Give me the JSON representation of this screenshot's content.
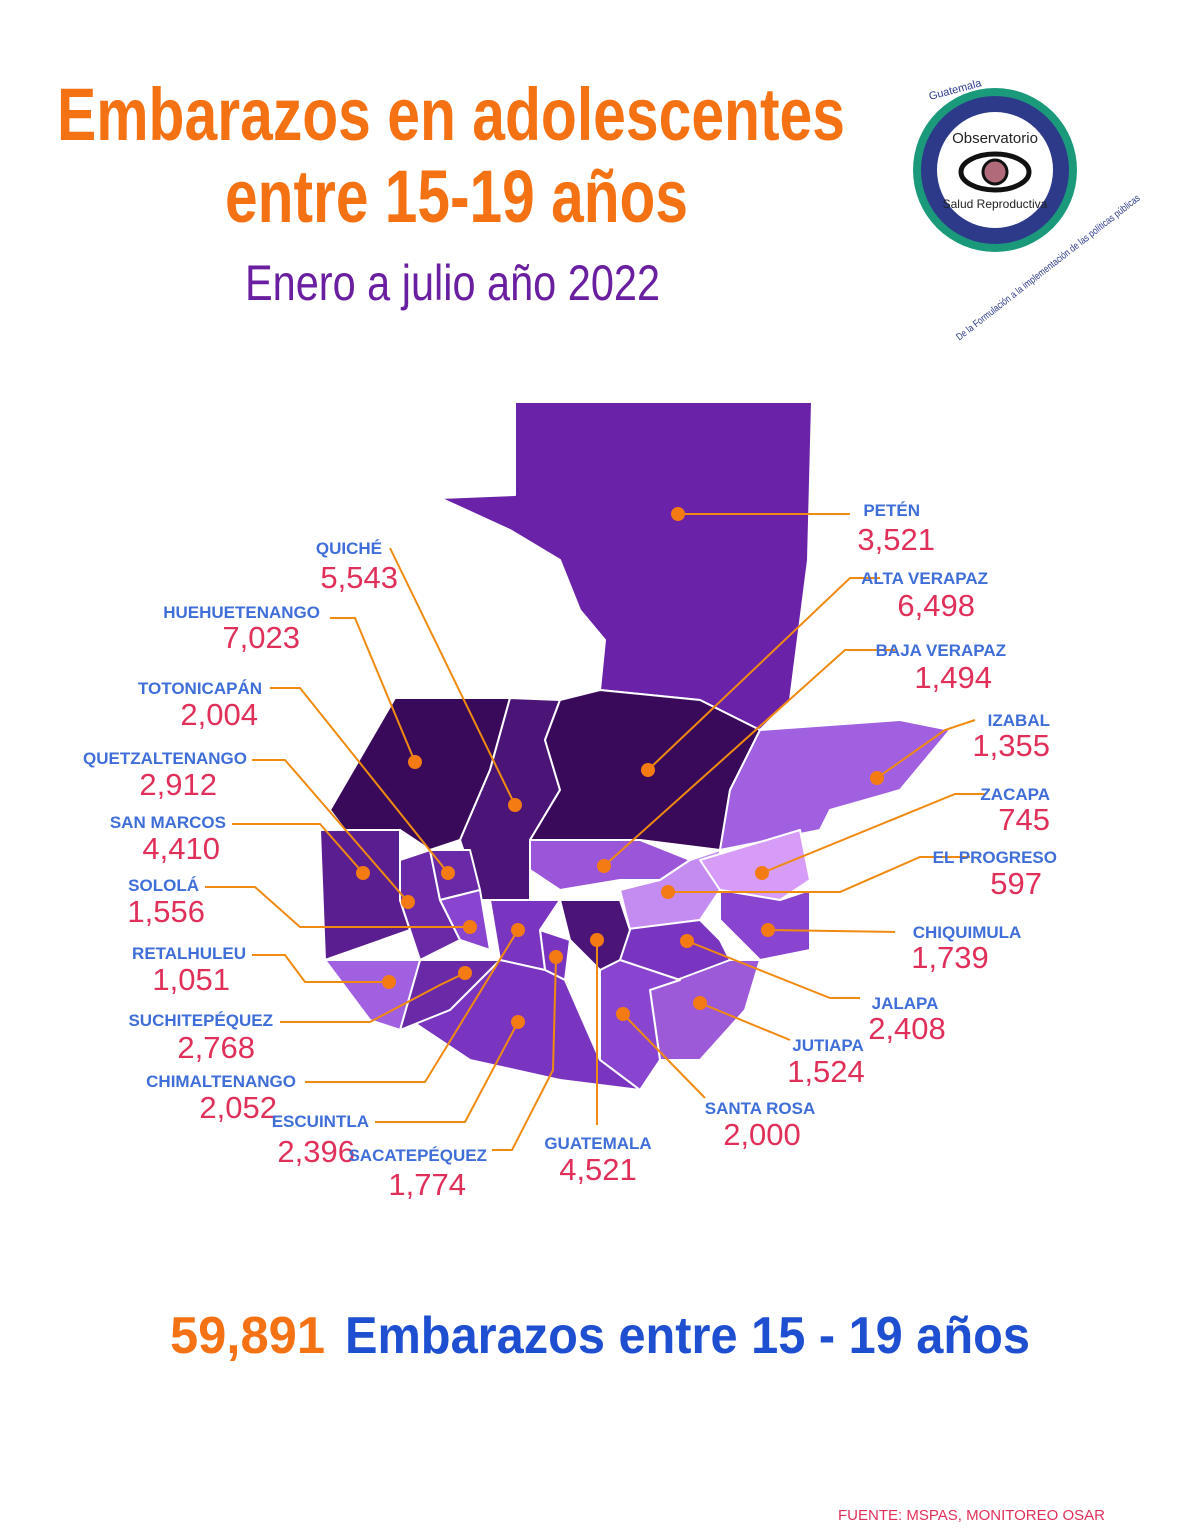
{
  "header": {
    "title_line1": "Embarazos en adolescentes",
    "title_line2": "entre 15-19 años",
    "subtitle": "Enero a julio año 2022"
  },
  "logo": {
    "country": "Guatemala",
    "name_line1": "Observatorio",
    "name_line2": "Salud Reproductiva",
    "motto": "De la Formulación a la implementación de las políticas públicas"
  },
  "departments": [
    {
      "name": "PETÉN",
      "value": "3,521"
    },
    {
      "name": "QUICHÉ",
      "value": "5,543"
    },
    {
      "name": "HUEHUETENANGO",
      "value": "7,023"
    },
    {
      "name": "TOTONICAPÁN",
      "value": "2,004"
    },
    {
      "name": "QUETZALTENANGO",
      "value": "2,912"
    },
    {
      "name": "SAN MARCOS",
      "value": "4,410"
    },
    {
      "name": "SOLOLÁ",
      "value": "1,556"
    },
    {
      "name": "RETALHULEU",
      "value": "1,051"
    },
    {
      "name": "SUCHITEPÉQUEZ",
      "value": "2,768"
    },
    {
      "name": "CHIMALTENANGO",
      "value": "2,052"
    },
    {
      "name": "ESCUINTLA",
      "value": "2,396"
    },
    {
      "name": "SACATEPÉQUEZ",
      "value": "1,774"
    },
    {
      "name": "GUATEMALA",
      "value": "4,521"
    },
    {
      "name": "SANTA ROSA",
      "value": "2,000"
    },
    {
      "name": "JUTIAPA",
      "value": "1,524"
    },
    {
      "name": "JALAPA",
      "value": "2,408"
    },
    {
      "name": "CHIQUIMULA",
      "value": "1,739"
    },
    {
      "name": "EL PROGRESO",
      "value": "597"
    },
    {
      "name": "ZACAPA",
      "value": "745"
    },
    {
      "name": "IZABAL",
      "value": "1,355"
    },
    {
      "name": "BAJA VERAPAZ",
      "value": "1,494"
    },
    {
      "name": "ALTA VERAPAZ",
      "value": "6,498"
    }
  ],
  "total": {
    "value": "59,891",
    "label": "Embarazos entre 15 - 19 años"
  },
  "source": "FUENTE: MSPAS, MONITOREO OSAR"
}
